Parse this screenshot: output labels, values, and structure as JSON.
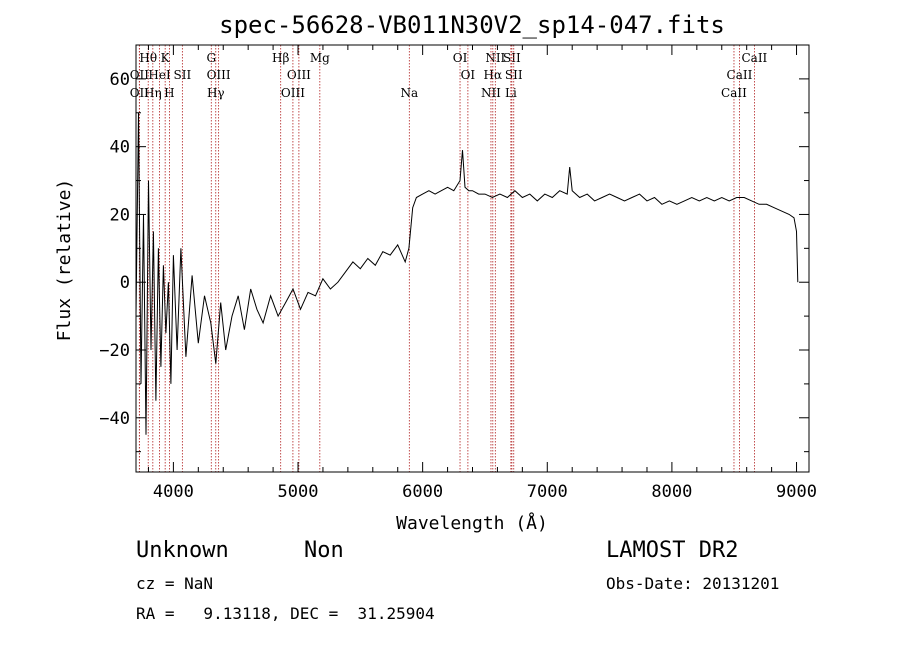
{
  "chart_data": {
    "type": "line",
    "title": "spec-56628-VB011N30V2_sp14-047.fits",
    "xlabel": "Wavelength (Å)",
    "ylabel": "Flux (relative)",
    "xlim": [
      3700,
      9100
    ],
    "ylim": [
      -56,
      70
    ],
    "x_ticks": [
      4000,
      5000,
      6000,
      7000,
      8000,
      9000
    ],
    "y_ticks": [
      -40,
      -20,
      0,
      20,
      40,
      60
    ],
    "grid": false,
    "line_color": "#000000",
    "marker_color": "#b22222",
    "series": [
      {
        "x": [
          3700,
          3720,
          3740,
          3760,
          3780,
          3800,
          3820,
          3840,
          3860,
          3880,
          3900,
          3920,
          3940,
          3960,
          3980,
          4000,
          4030,
          4060,
          4100,
          4150,
          4200,
          4250,
          4300,
          4340,
          4380,
          4420,
          4470,
          4520,
          4570,
          4620,
          4670,
          4720,
          4780,
          4840,
          4900,
          4960,
          5020,
          5080,
          5140,
          5200,
          5260,
          5320,
          5380,
          5440,
          5500,
          5560,
          5620,
          5680,
          5740,
          5800,
          5860,
          5890,
          5920,
          5950,
          6000,
          6050,
          6100,
          6150,
          6200,
          6250,
          6300,
          6320,
          6340,
          6370,
          6400,
          6450,
          6500,
          6560,
          6620,
          6680,
          6740,
          6800,
          6860,
          6920,
          6980,
          7040,
          7100,
          7160,
          7180,
          7200,
          7260,
          7320,
          7380,
          7440,
          7500,
          7560,
          7620,
          7680,
          7740,
          7800,
          7860,
          7920,
          7980,
          8040,
          8100,
          8160,
          8220,
          8280,
          8340,
          8400,
          8460,
          8520,
          8580,
          8640,
          8700,
          8760,
          8820,
          8880,
          8940,
          8980,
          9000,
          9010
        ],
        "values": [
          -10,
          50,
          -30,
          20,
          -45,
          30,
          -20,
          15,
          -35,
          10,
          -25,
          5,
          -15,
          0,
          -30,
          8,
          -20,
          10,
          -22,
          2,
          -18,
          -4,
          -12,
          -24,
          -6,
          -20,
          -10,
          -4,
          -14,
          -2,
          -8,
          -12,
          -4,
          -10,
          -6,
          -2,
          -8,
          -3,
          -4,
          1,
          -2,
          0,
          3,
          6,
          4,
          7,
          5,
          9,
          8,
          11,
          6,
          10,
          22,
          25,
          26,
          27,
          26,
          27,
          28,
          27,
          30,
          39,
          28,
          27,
          27,
          26,
          26,
          25,
          26,
          25,
          27,
          25,
          26,
          24,
          26,
          25,
          27,
          26,
          34,
          27,
          25,
          26,
          24,
          25,
          26,
          25,
          24,
          25,
          26,
          24,
          25,
          23,
          24,
          23,
          24,
          25,
          24,
          25,
          24,
          25,
          24,
          25,
          25,
          24,
          23,
          23,
          22,
          21,
          20,
          19,
          15,
          0
        ]
      }
    ],
    "line_markers": [
      {
        "label": "Hθ",
        "x": 3798,
        "row": 1
      },
      {
        "label": "K",
        "x": 3934,
        "row": 1
      },
      {
        "label": "G",
        "x": 4304,
        "row": 1
      },
      {
        "label": "Hβ",
        "x": 4861,
        "row": 1
      },
      {
        "label": "Mg",
        "x": 5175,
        "row": 1
      },
      {
        "label": "OI",
        "x": 6300,
        "row": 1
      },
      {
        "label": "NII",
        "x": 6583,
        "row": 1
      },
      {
        "label": "SII",
        "x": 6716,
        "row": 1
      },
      {
        "label": "CaII",
        "x": 8662,
        "row": 1
      },
      {
        "label": "OII",
        "x": 3727,
        "row": 2
      },
      {
        "label": "HeI",
        "x": 3889,
        "row": 2
      },
      {
        "label": "SII",
        "x": 4072,
        "row": 2
      },
      {
        "label": "OIII",
        "x": 4363,
        "row": 2
      },
      {
        "label": "OIII",
        "x": 5007,
        "row": 2
      },
      {
        "label": "OI",
        "x": 6363,
        "row": 2
      },
      {
        "label": "Hα",
        "x": 6563,
        "row": 2
      },
      {
        "label": "SII",
        "x": 6731,
        "row": 2
      },
      {
        "label": "CaII",
        "x": 8542,
        "row": 2
      },
      {
        "label": "OII",
        "x": 3727,
        "row": 3
      },
      {
        "label": "Hη",
        "x": 3835,
        "row": 3
      },
      {
        "label": "H",
        "x": 3968,
        "row": 3
      },
      {
        "label": "Hγ",
        "x": 4340,
        "row": 3
      },
      {
        "label": "OIII",
        "x": 4959,
        "row": 3
      },
      {
        "label": "Na",
        "x": 5893,
        "row": 3
      },
      {
        "label": "NII",
        "x": 6548,
        "row": 3
      },
      {
        "label": "Li",
        "x": 6708,
        "row": 3
      },
      {
        "label": "CaII",
        "x": 8498,
        "row": 3
      }
    ]
  },
  "footer": {
    "object_class": "Unknown",
    "subclass": "Non",
    "survey": "LAMOST DR2",
    "cz": "cz = NaN",
    "obs_date": "Obs-Date: 20131201",
    "coords": "RA =   9.13118, DEC =  31.25904"
  }
}
